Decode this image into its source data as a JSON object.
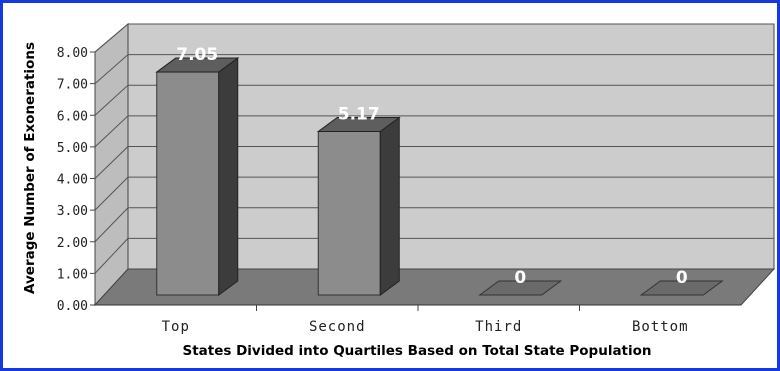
{
  "chart_data": {
    "type": "bar",
    "title": "",
    "xlabel": "States Divided into Quartiles Based on Total State Population",
    "ylabel": "Average Number of Exonerations",
    "categories": [
      "Top",
      "Second",
      "Third",
      "Bottom"
    ],
    "values": [
      7.05,
      5.17,
      0,
      0
    ],
    "data_labels": [
      "7.05",
      "5.17",
      "0",
      "0"
    ],
    "yticks": [
      "0.00",
      "1.00",
      "2.00",
      "3.00",
      "4.00",
      "5.00",
      "6.00",
      "7.00",
      "8.00"
    ],
    "ylim": [
      0,
      8
    ],
    "grid": true,
    "style": "3d",
    "colors": {
      "border": "#1538e0",
      "back_wall": "#cccccc",
      "side_wall": "#bdbdbd",
      "floor": "#7a7a7a",
      "bar_front": "#8c8c8c",
      "bar_side": "#3c3c3c",
      "bar_top": "#5e5e5e"
    }
  }
}
